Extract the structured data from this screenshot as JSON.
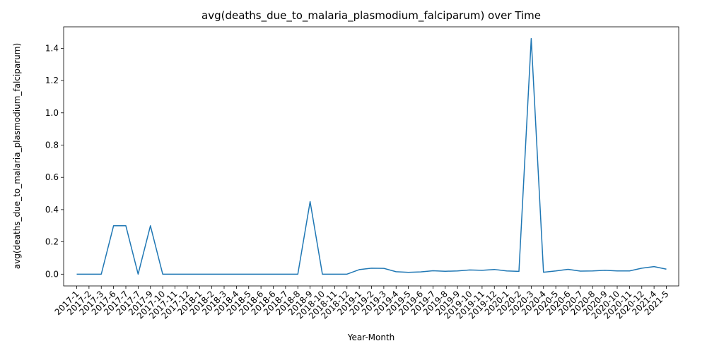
{
  "chart_data": {
    "type": "line",
    "title": "avg(deaths_due_to_malaria_plasmodium_falciparum) over Time",
    "xlabel": "Year-Month",
    "ylabel": "avg(deaths_due_to_malaria_plasmodium_falciparum)",
    "ylim": [
      -0.073,
      1.533
    ],
    "yticks": [
      "0.0",
      "0.2",
      "0.4",
      "0.6",
      "0.8",
      "1.0",
      "1.2",
      "1.4"
    ],
    "ytick_values": [
      0.0,
      0.2,
      0.4,
      0.6,
      0.8,
      1.0,
      1.2,
      1.4
    ],
    "grid": false,
    "line_color": "#1f77b4",
    "categories": [
      "2017-1",
      "2017-2",
      "2017-3",
      "2017-6",
      "2017-7",
      "2017-7",
      "2017-9",
      "2017-10",
      "2017-11",
      "2017-12",
      "2018-1",
      "2018-2",
      "2018-3",
      "2018-4",
      "2018-5",
      "2018-6",
      "2018-6",
      "2018-7",
      "2018-8",
      "2018-9",
      "2018-10",
      "2018-11",
      "2018-12",
      "2019-1",
      "2019-2",
      "2019-3",
      "2019-4",
      "2019-5",
      "2019-6",
      "2019-7",
      "2019-8",
      "2019-9",
      "2019-10",
      "2019-11",
      "2019-12",
      "2020-1",
      "2020-2",
      "2020-3",
      "2020-4",
      "2020-5",
      "2020-6",
      "2020-7",
      "2020-8",
      "2020-9",
      "2020-10",
      "2020-11",
      "2020-12",
      "2021-4",
      "2021-5"
    ],
    "values": [
      0.0,
      0.0,
      0.0,
      0.3,
      0.3,
      0.0,
      0.3,
      0.0,
      0.0,
      0.0,
      0.0,
      0.0,
      0.0,
      0.0,
      0.0,
      0.0,
      0.0,
      0.0,
      0.0,
      0.45,
      0.0,
      0.0,
      0.0,
      0.028,
      0.037,
      0.036,
      0.015,
      0.011,
      0.014,
      0.021,
      0.018,
      0.02,
      0.026,
      0.024,
      0.029,
      0.02,
      0.017,
      1.46,
      0.012,
      0.02,
      0.03,
      0.019,
      0.02,
      0.024,
      0.02,
      0.02,
      0.037,
      0.047,
      0.031
    ]
  }
}
